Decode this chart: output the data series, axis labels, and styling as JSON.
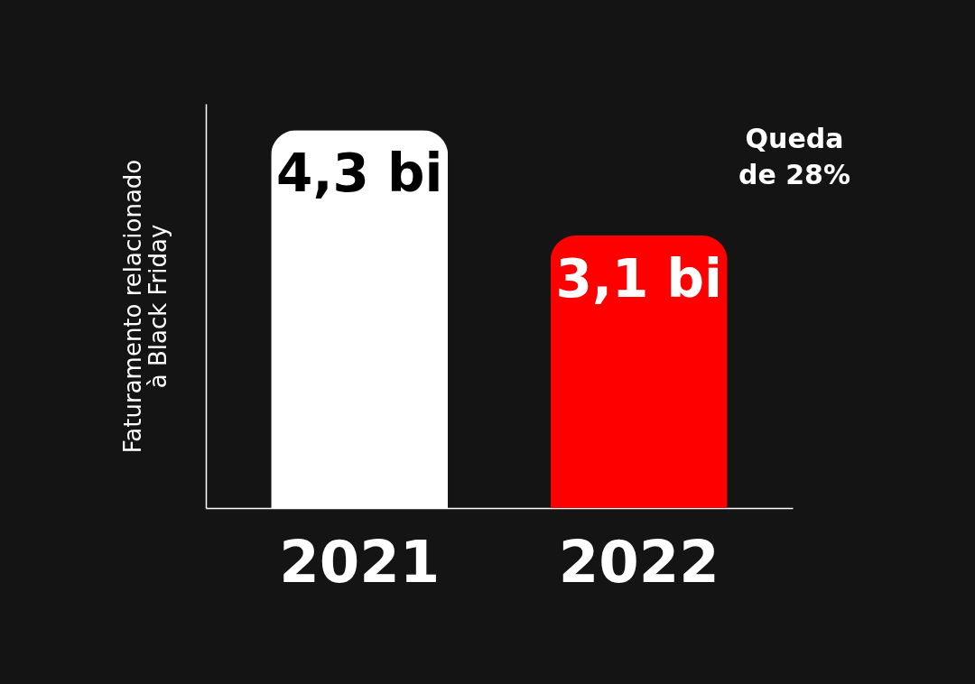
{
  "chart_data": {
    "type": "bar",
    "ylabel": "Faturamento relacionado\nà Black Friday",
    "categories": [
      "2021",
      "2022"
    ],
    "values": [
      4.3,
      3.1
    ],
    "colors": [
      "#ffffff",
      "#ff0000"
    ],
    "value_labels": [
      "4,3 bi",
      "3,1 bi"
    ],
    "ylim": [
      0,
      4.6
    ],
    "annotations": [
      "Queda\nde 28%"
    ]
  }
}
